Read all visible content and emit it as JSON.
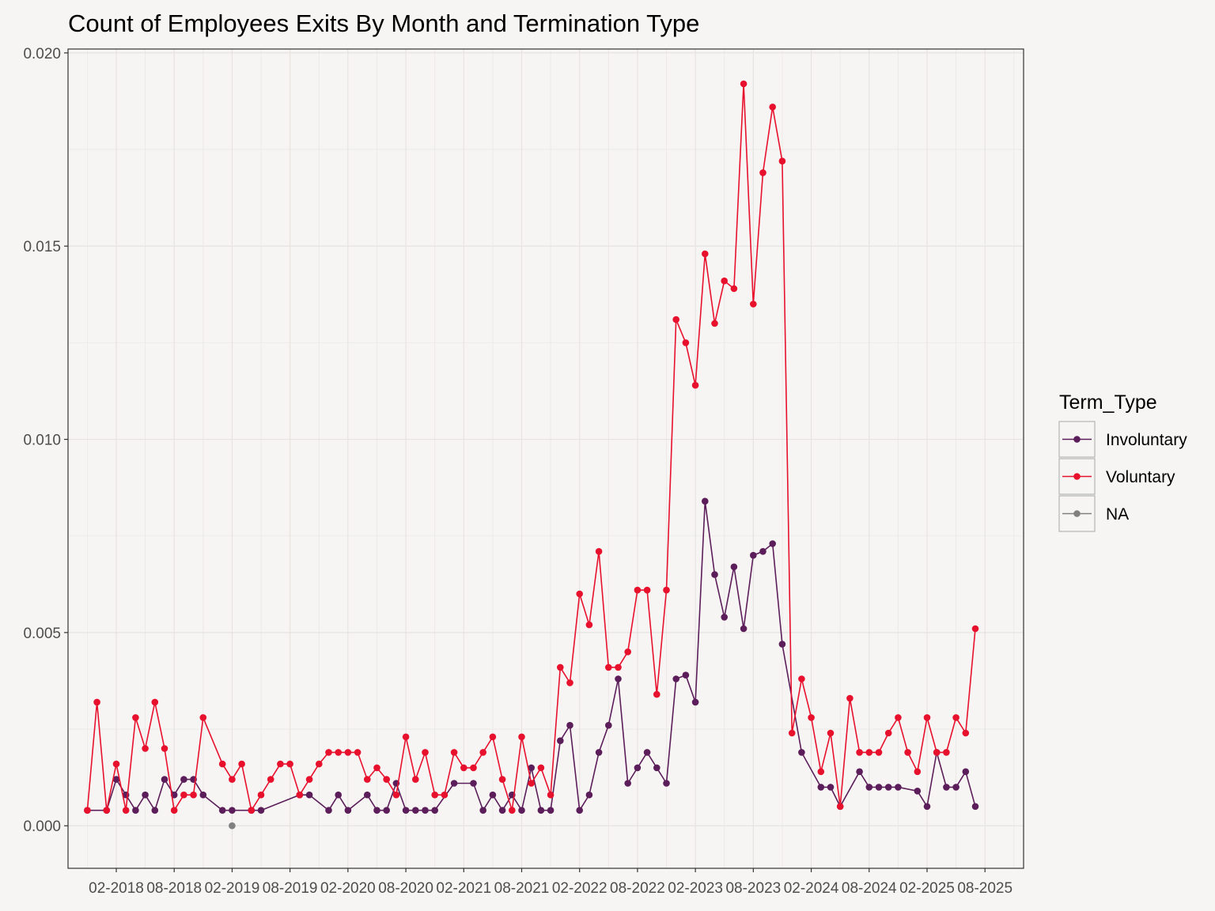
{
  "chart_data": {
    "type": "line",
    "title": "Count of Employees Exits By Month and Termination Type",
    "xlabel": "",
    "ylabel": "",
    "ylim": [
      -0.0011,
      0.0201
    ],
    "yticks": [
      0.0,
      0.005,
      0.01,
      0.015,
      0.02
    ],
    "ytick_labels": [
      "0.000",
      "0.005",
      "0.010",
      "0.015",
      "0.020"
    ],
    "xticks": [
      "2018-02",
      "2018-08",
      "2019-02",
      "2019-08",
      "2020-02",
      "2020-08",
      "2021-02",
      "2021-08",
      "2022-02",
      "2022-08",
      "2023-02",
      "2023-08",
      "2024-02",
      "2024-08",
      "2025-02",
      "2025-08"
    ],
    "xtick_labels": [
      "02-2018",
      "08-2018",
      "02-2019",
      "08-2019",
      "02-2020",
      "08-2020",
      "02-2021",
      "08-2021",
      "02-2022",
      "08-2022",
      "02-2023",
      "08-2023",
      "02-2024",
      "08-2024",
      "02-2025",
      "08-2025"
    ],
    "xlim": [
      "2017-09",
      "2025-12"
    ],
    "grid": true,
    "legend": {
      "title": "Term_Type",
      "placement": "right"
    },
    "series": [
      {
        "name": "Involuntary",
        "color": "#5c1e5a",
        "points": [
          [
            "2017-11",
            0.0004
          ],
          [
            "2018-01",
            0.0004
          ],
          [
            "2018-02",
            0.0012
          ],
          [
            "2018-03",
            0.0008
          ],
          [
            "2018-04",
            0.0004
          ],
          [
            "2018-05",
            0.0008
          ],
          [
            "2018-06",
            0.0004
          ],
          [
            "2018-07",
            0.0012
          ],
          [
            "2018-08",
            0.0008
          ],
          [
            "2018-09",
            0.0012
          ],
          [
            "2018-10",
            0.0012
          ],
          [
            "2018-11",
            0.0008
          ],
          [
            "2019-01",
            0.0004
          ],
          [
            "2019-02",
            0.0004
          ],
          [
            "2019-04",
            0.0004
          ],
          [
            "2019-05",
            0.0004
          ],
          [
            "2019-09",
            0.0008
          ],
          [
            "2019-10",
            0.0008
          ],
          [
            "2019-12",
            0.0004
          ],
          [
            "2020-01",
            0.0008
          ],
          [
            "2020-02",
            0.0004
          ],
          [
            "2020-04",
            0.0008
          ],
          [
            "2020-05",
            0.0004
          ],
          [
            "2020-06",
            0.0004
          ],
          [
            "2020-07",
            0.0011
          ],
          [
            "2020-08",
            0.0004
          ],
          [
            "2020-09",
            0.0004
          ],
          [
            "2020-10",
            0.0004
          ],
          [
            "2020-11",
            0.0004
          ],
          [
            "2021-01",
            0.0011
          ],
          [
            "2021-03",
            0.0011
          ],
          [
            "2021-04",
            0.0004
          ],
          [
            "2021-05",
            0.0008
          ],
          [
            "2021-06",
            0.0004
          ],
          [
            "2021-07",
            0.0008
          ],
          [
            "2021-08",
            0.0004
          ],
          [
            "2021-09",
            0.0015
          ],
          [
            "2021-10",
            0.0004
          ],
          [
            "2021-11",
            0.0004
          ],
          [
            "2021-12",
            0.0022
          ],
          [
            "2022-01",
            0.0026
          ],
          [
            "2022-02",
            0.0004
          ],
          [
            "2022-03",
            0.0008
          ],
          [
            "2022-04",
            0.0019
          ],
          [
            "2022-05",
            0.0026
          ],
          [
            "2022-06",
            0.0038
          ],
          [
            "2022-07",
            0.0011
          ],
          [
            "2022-08",
            0.0015
          ],
          [
            "2022-09",
            0.0019
          ],
          [
            "2022-10",
            0.0015
          ],
          [
            "2022-11",
            0.0011
          ],
          [
            "2022-12",
            0.0038
          ],
          [
            "2023-01",
            0.0039
          ],
          [
            "2023-02",
            0.0032
          ],
          [
            "2023-03",
            0.0084
          ],
          [
            "2023-04",
            0.0065
          ],
          [
            "2023-05",
            0.0054
          ],
          [
            "2023-06",
            0.0067
          ],
          [
            "2023-07",
            0.0051
          ],
          [
            "2023-08",
            0.007
          ],
          [
            "2023-09",
            0.0071
          ],
          [
            "2023-10",
            0.0073
          ],
          [
            "2023-11",
            0.0047
          ],
          [
            "2024-01",
            0.0019
          ],
          [
            "2024-03",
            0.001
          ],
          [
            "2024-04",
            0.001
          ],
          [
            "2024-05",
            0.0005
          ],
          [
            "2024-07",
            0.0014
          ],
          [
            "2024-08",
            0.001
          ],
          [
            "2024-09",
            0.001
          ],
          [
            "2024-10",
            0.001
          ],
          [
            "2024-11",
            0.001
          ],
          [
            "2025-01",
            0.0009
          ],
          [
            "2025-02",
            0.0005
          ],
          [
            "2025-03",
            0.0019
          ],
          [
            "2025-04",
            0.001
          ],
          [
            "2025-05",
            0.001
          ],
          [
            "2025-06",
            0.0014
          ],
          [
            "2025-07",
            0.0005
          ]
        ]
      },
      {
        "name": "Voluntary",
        "color": "#e8112d",
        "points": [
          [
            "2017-11",
            0.0004
          ],
          [
            "2017-12",
            0.0032
          ],
          [
            "2018-01",
            0.0004
          ],
          [
            "2018-02",
            0.0016
          ],
          [
            "2018-03",
            0.0004
          ],
          [
            "2018-04",
            0.0028
          ],
          [
            "2018-05",
            0.002
          ],
          [
            "2018-06",
            0.0032
          ],
          [
            "2018-07",
            0.002
          ],
          [
            "2018-08",
            0.0004
          ],
          [
            "2018-09",
            0.0008
          ],
          [
            "2018-10",
            0.0008
          ],
          [
            "2018-11",
            0.0028
          ],
          [
            "2019-01",
            0.0016
          ],
          [
            "2019-02",
            0.0012
          ],
          [
            "2019-03",
            0.0016
          ],
          [
            "2019-04",
            0.0004
          ],
          [
            "2019-05",
            0.0008
          ],
          [
            "2019-06",
            0.0012
          ],
          [
            "2019-07",
            0.0016
          ],
          [
            "2019-08",
            0.0016
          ],
          [
            "2019-09",
            0.0008
          ],
          [
            "2019-10",
            0.0012
          ],
          [
            "2019-11",
            0.0016
          ],
          [
            "2019-12",
            0.0019
          ],
          [
            "2020-01",
            0.0019
          ],
          [
            "2020-02",
            0.0019
          ],
          [
            "2020-03",
            0.0019
          ],
          [
            "2020-04",
            0.0012
          ],
          [
            "2020-05",
            0.0015
          ],
          [
            "2020-06",
            0.0012
          ],
          [
            "2020-07",
            0.0008
          ],
          [
            "2020-08",
            0.0023
          ],
          [
            "2020-09",
            0.0012
          ],
          [
            "2020-10",
            0.0019
          ],
          [
            "2020-11",
            0.0008
          ],
          [
            "2020-12",
            0.0008
          ],
          [
            "2021-01",
            0.0019
          ],
          [
            "2021-02",
            0.0015
          ],
          [
            "2021-03",
            0.0015
          ],
          [
            "2021-04",
            0.0019
          ],
          [
            "2021-05",
            0.0023
          ],
          [
            "2021-06",
            0.0012
          ],
          [
            "2021-07",
            0.0004
          ],
          [
            "2021-08",
            0.0023
          ],
          [
            "2021-09",
            0.0011
          ],
          [
            "2021-10",
            0.0015
          ],
          [
            "2021-11",
            0.0008
          ],
          [
            "2021-12",
            0.0041
          ],
          [
            "2022-01",
            0.0037
          ],
          [
            "2022-02",
            0.006
          ],
          [
            "2022-03",
            0.0052
          ],
          [
            "2022-04",
            0.0071
          ],
          [
            "2022-05",
            0.0041
          ],
          [
            "2022-06",
            0.0041
          ],
          [
            "2022-07",
            0.0045
          ],
          [
            "2022-08",
            0.0061
          ],
          [
            "2022-09",
            0.0061
          ],
          [
            "2022-10",
            0.0034
          ],
          [
            "2022-11",
            0.0061
          ],
          [
            "2022-12",
            0.0131
          ],
          [
            "2023-01",
            0.0125
          ],
          [
            "2023-02",
            0.0114
          ],
          [
            "2023-03",
            0.0148
          ],
          [
            "2023-04",
            0.013
          ],
          [
            "2023-05",
            0.0141
          ],
          [
            "2023-06",
            0.0139
          ],
          [
            "2023-07",
            0.0192
          ],
          [
            "2023-08",
            0.0135
          ],
          [
            "2023-09",
            0.0169
          ],
          [
            "2023-10",
            0.0186
          ],
          [
            "2023-11",
            0.0172
          ],
          [
            "2023-12",
            0.0024
          ],
          [
            "2024-01",
            0.0038
          ],
          [
            "2024-02",
            0.0028
          ],
          [
            "2024-03",
            0.0014
          ],
          [
            "2024-04",
            0.0024
          ],
          [
            "2024-05",
            0.0005
          ],
          [
            "2024-06",
            0.0033
          ],
          [
            "2024-07",
            0.0019
          ],
          [
            "2024-08",
            0.0019
          ],
          [
            "2024-09",
            0.0019
          ],
          [
            "2024-10",
            0.0024
          ],
          [
            "2024-11",
            0.0028
          ],
          [
            "2024-12",
            0.0019
          ],
          [
            "2025-01",
            0.0014
          ],
          [
            "2025-02",
            0.0028
          ],
          [
            "2025-03",
            0.0019
          ],
          [
            "2025-04",
            0.0019
          ],
          [
            "2025-05",
            0.0028
          ],
          [
            "2025-06",
            0.0024
          ],
          [
            "2025-07",
            0.0051
          ]
        ]
      },
      {
        "name": "NA",
        "color": "#808080",
        "points": [
          [
            "2019-02",
            0.0
          ]
        ]
      }
    ]
  }
}
